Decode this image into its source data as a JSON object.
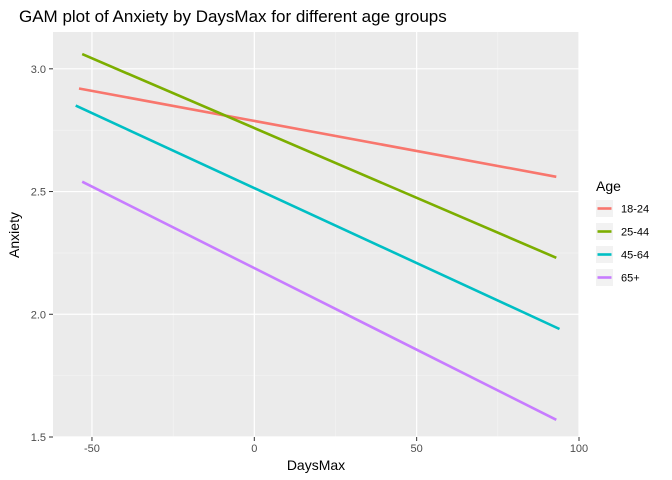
{
  "chart_data": {
    "type": "line",
    "title": "GAM plot of Anxiety by DaysMax for different age groups",
    "xlabel": "DaysMax",
    "ylabel": "Anxiety",
    "xlim": [
      -62,
      100
    ],
    "ylim": [
      1.5,
      3.15
    ],
    "xticks": [
      -50,
      0,
      50,
      100
    ],
    "xtick_labels": [
      "-50",
      "0",
      "50",
      "100"
    ],
    "yticks": [
      1.5,
      2.0,
      2.5,
      3.0
    ],
    "ytick_labels": [
      "1.5",
      "2.0",
      "2.5",
      "3.0"
    ],
    "grid": true,
    "legend": {
      "title": "Age",
      "position": "right"
    },
    "series": [
      {
        "name": "18-24",
        "color": "#F8766D",
        "x": [
          -54,
          93
        ],
        "y": [
          2.92,
          2.56
        ]
      },
      {
        "name": "25-44",
        "color": "#7CAE00",
        "x": [
          -53,
          93
        ],
        "y": [
          3.06,
          2.23
        ]
      },
      {
        "name": "45-64",
        "color": "#00BFC4",
        "x": [
          -55,
          94
        ],
        "y": [
          2.85,
          1.94
        ]
      },
      {
        "name": "65+",
        "color": "#C77CFF",
        "x": [
          -53,
          93
        ],
        "y": [
          2.54,
          1.57
        ]
      }
    ]
  }
}
